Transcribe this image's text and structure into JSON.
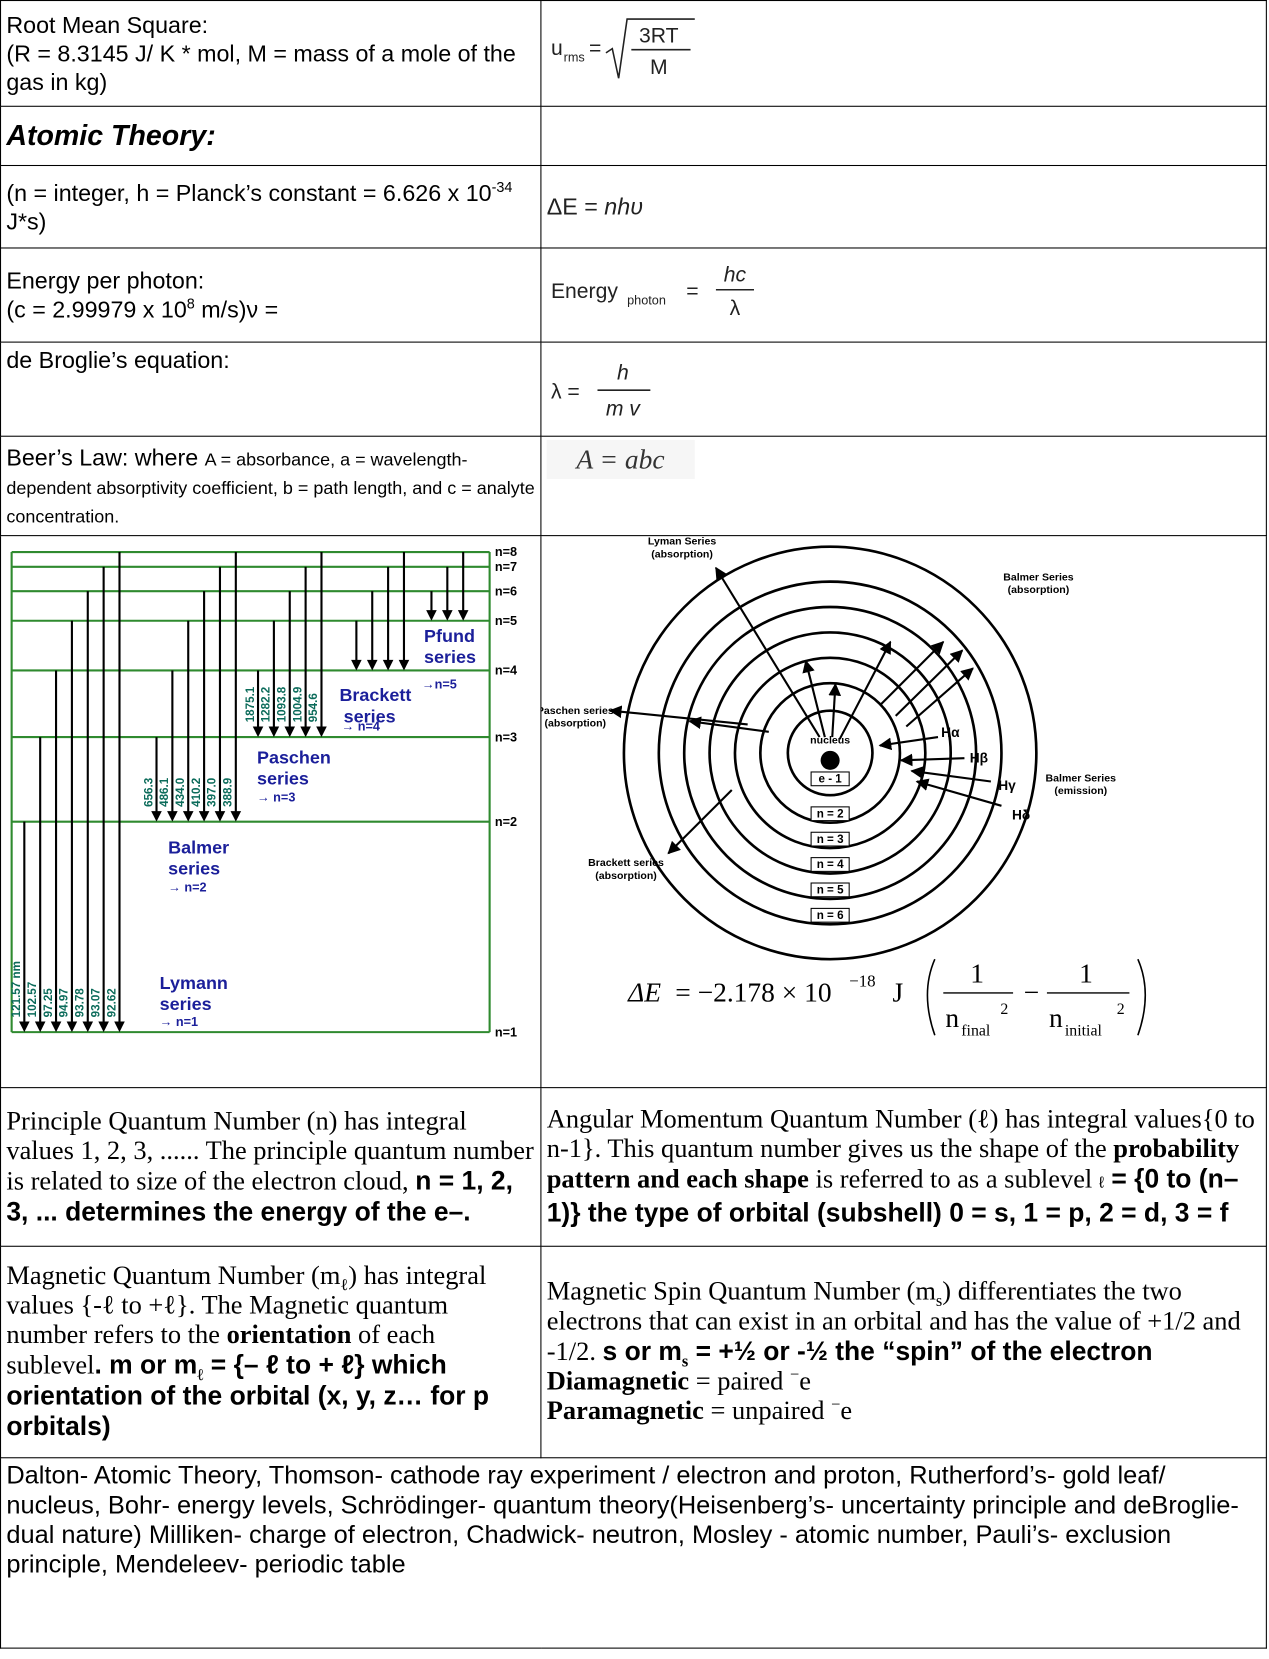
{
  "rms": {
    "title": "Root Mean Square:",
    "note": "(R = 8.3145 J/ K * mol, M = mass of a mole of the gas in kg)",
    "symbol": "u",
    "sub": "rms",
    "eq": "=",
    "numerator": "3RT",
    "denominator": "M"
  },
  "atomic": {
    "heading": "Atomic Theory:"
  },
  "planck": {
    "note": "(n = integer, h = Planck’s constant = 6.626 x 10",
    "exp": "-34",
    "unit": " J*s)",
    "lhs": "ΔE = ",
    "rhs": "nhυ"
  },
  "photon": {
    "title": "Energy per photon:",
    "note": "(c = 2.99979 x 10",
    "exp": "8",
    "unit": " m/s)ν =",
    "lhs": "Energy",
    "sub": "photon",
    "eq": "=",
    "numerator": "hc",
    "denominator": "λ"
  },
  "debroglie": {
    "title": "de Broglie’s equation:",
    "lhs": "λ =",
    "numerator": "h",
    "denominator": "m v"
  },
  "beer": {
    "title": "Beer’s Law: where ",
    "note": "A = absorbance, a = wavelength-dependent absorptivity coefficient, b = path length, and c = analyte concentration.",
    "formula": "A = abc"
  },
  "energy_levels": {
    "levels": [
      "n=1",
      "n=2",
      "n=3",
      "n=4",
      "n=5",
      "n=6",
      "n=7",
      "n=8"
    ],
    "series": [
      {
        "name": "Lymann",
        "word": "series",
        "target": "→ n=1",
        "wavelengths": [
          "121.57 nm",
          "102.57",
          "97.25",
          "94.97",
          "93.78",
          "93.07",
          "92.62"
        ]
      },
      {
        "name": "Balmer",
        "word": "series",
        "target": "→ n=2",
        "wavelengths": [
          "656.3",
          "486.1",
          "434.0",
          "410.2",
          "397.0",
          "388.9"
        ]
      },
      {
        "name": "Paschen",
        "word": "series",
        "target": "→ n=3",
        "wavelengths": [
          "1875.1",
          "1282.2",
          "1093.8",
          "1004.9",
          "954.6"
        ]
      },
      {
        "name": "Brackett",
        "word": "series",
        "target": "→ n=4",
        "wavelengths": []
      },
      {
        "name": "Pfund",
        "word": "series",
        "target": "→n=5",
        "wavelengths": []
      }
    ]
  },
  "orbit_diagram": {
    "groups": [
      [
        "Lyman Series",
        "(absorption)"
      ],
      [
        "Balmer Series",
        "(absorption)"
      ],
      [
        "Paschen series",
        "(absorption)"
      ],
      [
        "Balmer Series",
        "(emission)"
      ],
      [
        "Brackett series",
        "(absorption)"
      ]
    ],
    "nucleus": "nucleus",
    "shells": [
      "e - 1",
      "n = 2",
      "n = 3",
      "n = 4",
      "n = 5",
      "n = 6"
    ],
    "lines": [
      "Hα",
      "Hβ",
      "Hγ",
      "Hδ"
    ]
  },
  "rydberg": {
    "lhs": "ΔE",
    "eq": " = −2.178 × 10",
    "exp": "−18",
    "unit": "J",
    "one": "1",
    "n": "n",
    "final": "final",
    "initial": "initial",
    "sq": "2",
    "minus": "−"
  },
  "principle": [
    "Principle Quantum Number (n) has integral values 1, 2, 3, ......  The principle quantum number is related to size of the electron cloud, ",
    "n = 1, 2, 3, ... determines the energy of the e–."
  ],
  "angular": [
    "Angular Momentum Quantum Number (ℓ) has integral values{0 to n-1}.  This quantum number gives us the shape of the ",
    "probability pattern and each shape",
    " is referred to as a sublevel ",
    "ℓ",
    " = {0 to (n–1)} the type of orbital (subshell) 0 = s, 1 = p, 2 = d, 3 = f"
  ],
  "magnetic": [
    "Magnetic Quantum Number (m",
    "ℓ",
    ") has integral values {-ℓ to +ℓ}.  The Magnetic quantum number refers to the ",
    "orientation",
    " of each sublevel",
    ". m or m",
    "ℓ",
    " = {– ℓ to + ℓ} which orientation of the orbital (x, y, z… for p orbitals)"
  ],
  "spin": [
    "Magnetic Spin Quantum Number (m",
    "s",
    ") differentiates the two electrons that can exist in an orbital and has the value of +1/2 and -1/2. ",
    "s or m",
    "s",
    " = +½ or -½ the “spin” of the electron"
  ],
  "diamagnetic": [
    "Diamagnetic",
    " = paired ",
    "−",
    "e"
  ],
  "paramagnetic": [
    "Paramagnetic",
    " = unpaired ",
    "−",
    "e"
  ],
  "scientists": "Dalton- Atomic Theory, Thomson- cathode ray experiment / electron and proton, Rutherford’s- gold leaf/ nucleus, Bohr- energy levels, Schrödinger- quantum theory(Heisenberg’s- uncertainty principle and deBroglie-dual nature) Milliken- charge of electron, Chadwick- neutron, Mosley - atomic number, Pauli’s- exclusion principle, Mendeleev- periodic table"
}
